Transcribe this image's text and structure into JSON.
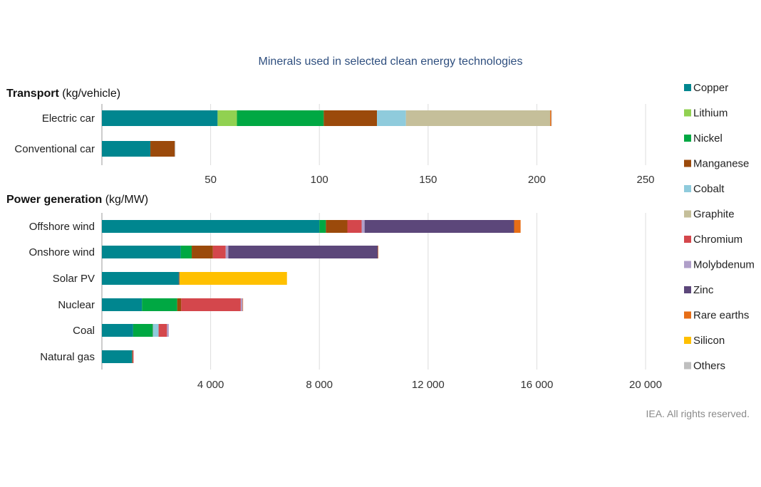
{
  "title": "Minerals used in selected clean energy technologies",
  "credit": "IEA. All rights reserved.",
  "legend": [
    {
      "name": "Copper",
      "color": "#00868f"
    },
    {
      "name": "Lithium",
      "color": "#91d151"
    },
    {
      "name": "Nickel",
      "color": "#00a843"
    },
    {
      "name": "Manganese",
      "color": "#9b4a0b"
    },
    {
      "name": "Cobalt",
      "color": "#8fcbdc"
    },
    {
      "name": "Graphite",
      "color": "#c5bf9a"
    },
    {
      "name": "Chromium",
      "color": "#d4474c"
    },
    {
      "name": "Molybdenum",
      "color": "#b09fc9"
    },
    {
      "name": "Zinc",
      "color": "#5c477a"
    },
    {
      "name": "Rare earths",
      "color": "#e76e16"
    },
    {
      "name": "Silicon",
      "color": "#ffc000"
    },
    {
      "name": "Others",
      "color": "#bfbfbf"
    }
  ],
  "chart_data": [
    {
      "type": "bar",
      "orientation": "horizontal",
      "stacked": true,
      "section_title_bold": "Transport",
      "section_title_unit": " (kg/vehicle)",
      "categories": [
        "Electric car",
        "Conventional car"
      ],
      "xlim": [
        0,
        250
      ],
      "xticks": [
        50,
        100,
        150,
        200,
        250
      ],
      "xtick_labels": [
        "50",
        "100",
        "150",
        "200",
        "250"
      ],
      "grid": true,
      "series": [
        {
          "name": "Copper",
          "values": [
            53.2,
            22.3
          ]
        },
        {
          "name": "Lithium",
          "values": [
            8.9,
            0
          ]
        },
        {
          "name": "Nickel",
          "values": [
            39.9,
            0
          ]
        },
        {
          "name": "Manganese",
          "values": [
            24.5,
            11.2
          ]
        },
        {
          "name": "Cobalt",
          "values": [
            13.3,
            0
          ]
        },
        {
          "name": "Graphite",
          "values": [
            66.3,
            0
          ]
        },
        {
          "name": "Chromium",
          "values": [
            0,
            0
          ]
        },
        {
          "name": "Molybdenum",
          "values": [
            0,
            0
          ]
        },
        {
          "name": "Zinc",
          "values": [
            0,
            0
          ]
        },
        {
          "name": "Rare earths",
          "values": [
            0.5,
            0
          ]
        },
        {
          "name": "Silicon",
          "values": [
            0,
            0
          ]
        },
        {
          "name": "Others",
          "values": [
            0.3,
            0.3
          ]
        }
      ]
    },
    {
      "type": "bar",
      "orientation": "horizontal",
      "stacked": true,
      "section_title_bold": "Power generation",
      "section_title_unit": " (kg/MW)",
      "categories": [
        "Offshore wind",
        "Onshore wind",
        "Solar PV",
        "Nuclear",
        "Coal",
        "Natural gas"
      ],
      "xlim": [
        0,
        20000
      ],
      "xticks": [
        4000,
        8000,
        12000,
        16000,
        20000
      ],
      "xtick_labels": [
        "4 000",
        "8 000",
        "12 000",
        "16 000",
        "20 000"
      ],
      "grid": true,
      "series": [
        {
          "name": "Copper",
          "values": [
            8000,
            2900,
            2822,
            1473,
            1150,
            1100
          ]
        },
        {
          "name": "Lithium",
          "values": [
            0,
            0,
            0,
            0,
            0,
            0
          ]
        },
        {
          "name": "Nickel",
          "values": [
            240,
            404,
            1.3,
            1297,
            721,
            16
          ]
        },
        {
          "name": "Manganese",
          "values": [
            790,
            780,
            0,
            148,
            5,
            0
          ]
        },
        {
          "name": "Cobalt",
          "values": [
            0,
            0,
            0,
            0,
            210,
            0
          ]
        },
        {
          "name": "Graphite",
          "values": [
            0,
            0,
            0,
            0,
            0,
            0
          ]
        },
        {
          "name": "Chromium",
          "values": [
            525,
            470,
            0,
            2190,
            308,
            48
          ]
        },
        {
          "name": "Molybdenum",
          "values": [
            109,
            99,
            0,
            70,
            66,
            0
          ]
        },
        {
          "name": "Zinc",
          "values": [
            5500,
            5500,
            30,
            0,
            0,
            0
          ]
        },
        {
          "name": "Rare earths",
          "values": [
            239,
            14,
            0,
            0.5,
            0,
            0
          ]
        },
        {
          "name": "Silicon",
          "values": [
            0,
            0,
            3955,
            0,
            0,
            0
          ]
        },
        {
          "name": "Others",
          "values": [
            0,
            0,
            0,
            0,
            0,
            0
          ]
        }
      ]
    }
  ]
}
